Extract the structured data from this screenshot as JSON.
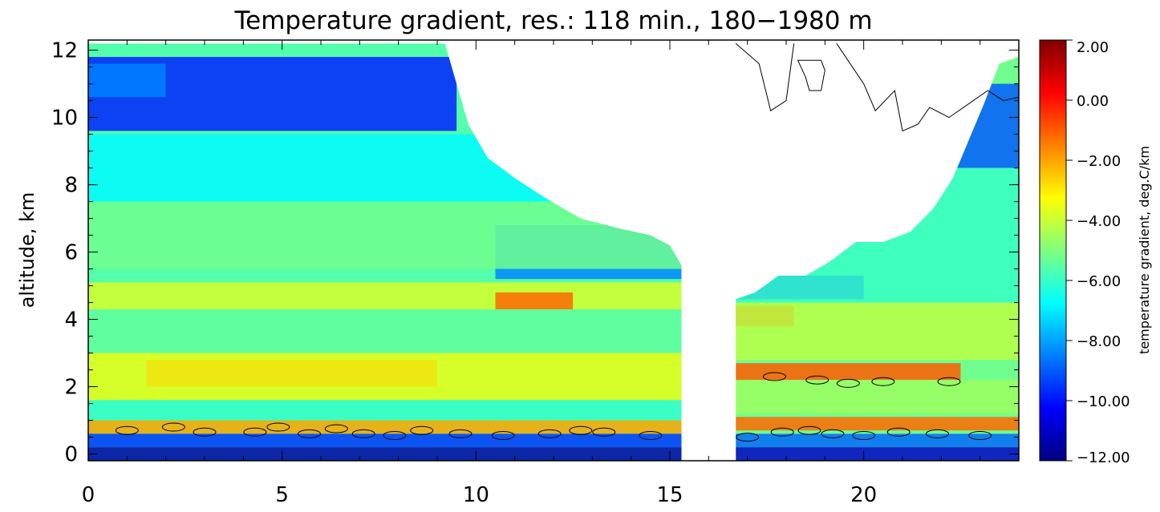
{
  "chart_data": {
    "type": "heatmap",
    "title": "Temperature gradient, res.: 118 min., 180−1980 m",
    "xlabel": "",
    "ylabel": "altitude, km",
    "xlim": [
      0,
      24
    ],
    "ylim": [
      -0.2,
      12.3
    ],
    "x_ticks": [
      {
        "value": 0,
        "label": "0"
      },
      {
        "value": 5,
        "label": "5"
      },
      {
        "value": 10,
        "label": "10"
      },
      {
        "value": 15,
        "label": "15"
      },
      {
        "value": 20,
        "label": "20"
      }
    ],
    "y_ticks": [
      {
        "value": 0,
        "label": "0"
      },
      {
        "value": 2,
        "label": "2"
      },
      {
        "value": 4,
        "label": "4"
      },
      {
        "value": 6,
        "label": "6"
      },
      {
        "value": 8,
        "label": "8"
      },
      {
        "value": 10,
        "label": "10"
      },
      {
        "value": 12,
        "label": "12"
      }
    ],
    "colorbar": {
      "title": "temperature gradient, deg.C/km",
      "range": [
        -12,
        2
      ],
      "ticks": [
        {
          "value": 2,
          "label": "2.00"
        },
        {
          "value": 0,
          "label": "0.00"
        },
        {
          "value": -2,
          "label": "−2.00"
        },
        {
          "value": -4,
          "label": "−4.00"
        },
        {
          "value": -6,
          "label": "−6.00"
        },
        {
          "value": -8,
          "label": "−8.00"
        },
        {
          "value": -10,
          "label": "−10.00"
        },
        {
          "value": -12,
          "label": "−12.00"
        }
      ],
      "colors": [
        "#00007f",
        "#0000ff",
        "#007fff",
        "#00ffff",
        "#7fff7f",
        "#ffff00",
        "#ff7f00",
        "#ff0000",
        "#7f0000"
      ]
    },
    "data_gap": [
      15.3,
      16.7
    ],
    "upper_boundary": [
      {
        "x": 0,
        "y": 12.2
      },
      {
        "x": 9.2,
        "y": 12.2
      },
      {
        "x": 9.5,
        "y": 11.0
      },
      {
        "x": 9.8,
        "y": 9.8
      },
      {
        "x": 10.3,
        "y": 8.8
      },
      {
        "x": 11.0,
        "y": 8.2
      },
      {
        "x": 11.8,
        "y": 7.6
      },
      {
        "x": 12.7,
        "y": 7.0
      },
      {
        "x": 13.7,
        "y": 6.7
      },
      {
        "x": 14.5,
        "y": 6.5
      },
      {
        "x": 15.0,
        "y": 6.2
      },
      {
        "x": 15.3,
        "y": 5.6
      },
      {
        "x": 16.7,
        "y": 4.6
      },
      {
        "x": 17.2,
        "y": 4.8
      },
      {
        "x": 17.8,
        "y": 5.3
      },
      {
        "x": 18.5,
        "y": 5.3
      },
      {
        "x": 19.1,
        "y": 5.7
      },
      {
        "x": 19.8,
        "y": 6.3
      },
      {
        "x": 20.5,
        "y": 6.3
      },
      {
        "x": 21.2,
        "y": 6.6
      },
      {
        "x": 21.8,
        "y": 7.3
      },
      {
        "x": 22.3,
        "y": 8.2
      },
      {
        "x": 22.7,
        "y": 9.3
      },
      {
        "x": 23.1,
        "y": 10.4
      },
      {
        "x": 23.5,
        "y": 11.6
      },
      {
        "x": 24.0,
        "y": 11.8
      }
    ],
    "features": [
      {
        "x": [
          0,
          9.5
        ],
        "y": [
          9.6,
          11.8
        ],
        "value": -9.8
      },
      {
        "x": [
          0,
          2.0
        ],
        "y": [
          10.6,
          11.6
        ],
        "value": -8.5
      },
      {
        "x": [
          0,
          12.5
        ],
        "y": [
          7.5,
          9.5
        ],
        "value": -6.8
      },
      {
        "x": [
          10.5,
          15.3
        ],
        "y": [
          5.2,
          6.8
        ],
        "value": -8.4
      },
      {
        "x": [
          0,
          15.3
        ],
        "y": [
          5.5,
          7.5
        ],
        "value": -5.2
      },
      {
        "x": [
          0,
          15.3
        ],
        "y": [
          4.3,
          5.1
        ],
        "value": -3.8
      },
      {
        "x": [
          10.5,
          12.5
        ],
        "y": [
          4.3,
          4.8
        ],
        "value": -1.2
      },
      {
        "x": [
          0,
          15.3
        ],
        "y": [
          3.0,
          4.3
        ],
        "value": -5.4
      },
      {
        "x": [
          1.5,
          9.0
        ],
        "y": [
          2.0,
          2.8
        ],
        "value": -0.9
      },
      {
        "x": [
          0,
          15.3
        ],
        "y": [
          1.6,
          3.0
        ],
        "value": -3.5
      },
      {
        "x": [
          0,
          15.3
        ],
        "y": [
          1.0,
          1.6
        ],
        "value": -6.0
      },
      {
        "x": [
          0,
          15.3
        ],
        "y": [
          0.6,
          1.0
        ],
        "value": -2.0
      },
      {
        "x": [
          0,
          15.3
        ],
        "y": [
          0.2,
          0.6
        ],
        "value": -9.5
      },
      {
        "x": [
          0,
          15.3
        ],
        "y": [
          -0.2,
          0.2
        ],
        "value": -11.5
      },
      {
        "x": [
          22.0,
          24.0
        ],
        "y": [
          8.5,
          11.0
        ],
        "value": -9.0
      },
      {
        "x": [
          16.7,
          20.0
        ],
        "y": [
          4.6,
          5.3
        ],
        "value": -9.8
      },
      {
        "x": [
          16.7,
          24.0
        ],
        "y": [
          4.5,
          8.5
        ],
        "value": -6.0
      },
      {
        "x": [
          16.7,
          18.2
        ],
        "y": [
          3.8,
          4.4
        ],
        "value": -0.6
      },
      {
        "x": [
          16.7,
          24.0
        ],
        "y": [
          2.8,
          4.5
        ],
        "value": -4.2
      },
      {
        "x": [
          16.7,
          22.5
        ],
        "y": [
          2.2,
          2.7
        ],
        "value": -1.0
      },
      {
        "x": [
          16.7,
          24.0
        ],
        "y": [
          1.2,
          2.2
        ],
        "value": -4.6
      },
      {
        "x": [
          16.7,
          24.0
        ],
        "y": [
          0.7,
          1.1
        ],
        "value": -1.2
      },
      {
        "x": [
          16.7,
          24.0
        ],
        "y": [
          0.2,
          0.6
        ],
        "value": -8.8
      },
      {
        "x": [
          16.7,
          24.0
        ],
        "y": [
          -0.2,
          0.2
        ],
        "value": -11.0
      }
    ]
  }
}
